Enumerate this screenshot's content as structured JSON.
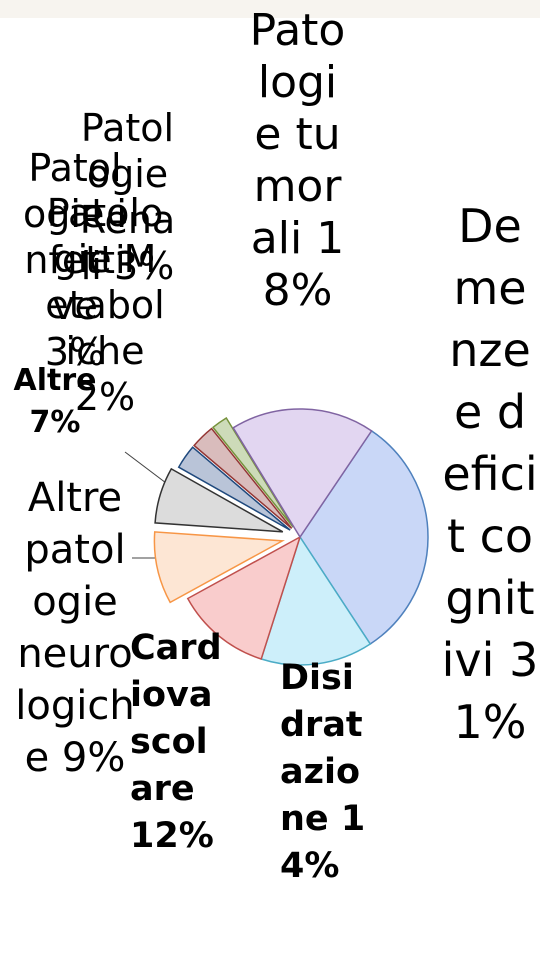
{
  "chart_data": {
    "type": "pie",
    "categories": [
      "Demenze e deficit cognitivi",
      "Disidratazione",
      "Cardiovascolare",
      "Altre patologie neurologiche",
      "Altre",
      "Patologie infettive",
      "Patologie Renali",
      "Patologie Metaboliche",
      "Patologie tumorali"
    ],
    "values": [
      31,
      14,
      12,
      9,
      7,
      3,
      3,
      2,
      18
    ],
    "value_labels": [
      "31%",
      "14%",
      "12%",
      "9%",
      "7%",
      "3%",
      "3%",
      "2%",
      "18%"
    ],
    "colors": [
      "#c9d7f7",
      "#cdeffa",
      "#f9cccc",
      "#fde6d4",
      "#dcdcdc",
      "#b9c4d8",
      "#d9bcbc",
      "#cddbb9",
      "#e2d6f1"
    ],
    "legend": false
  }
}
